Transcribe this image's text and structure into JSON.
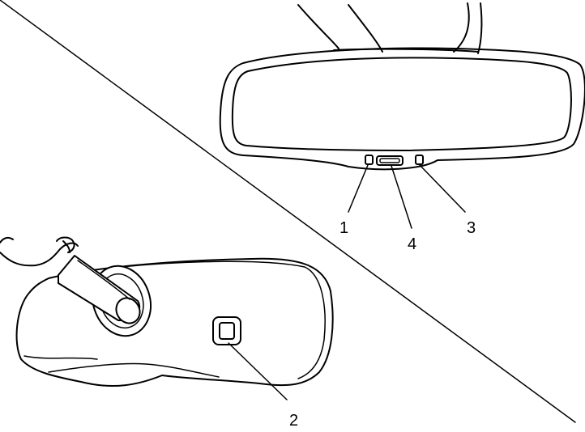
{
  "callouts": {
    "c1": "1",
    "c2": "2",
    "c3": "3",
    "c4": "4"
  },
  "colors": {
    "line": "#000000",
    "background": "#ffffff"
  }
}
